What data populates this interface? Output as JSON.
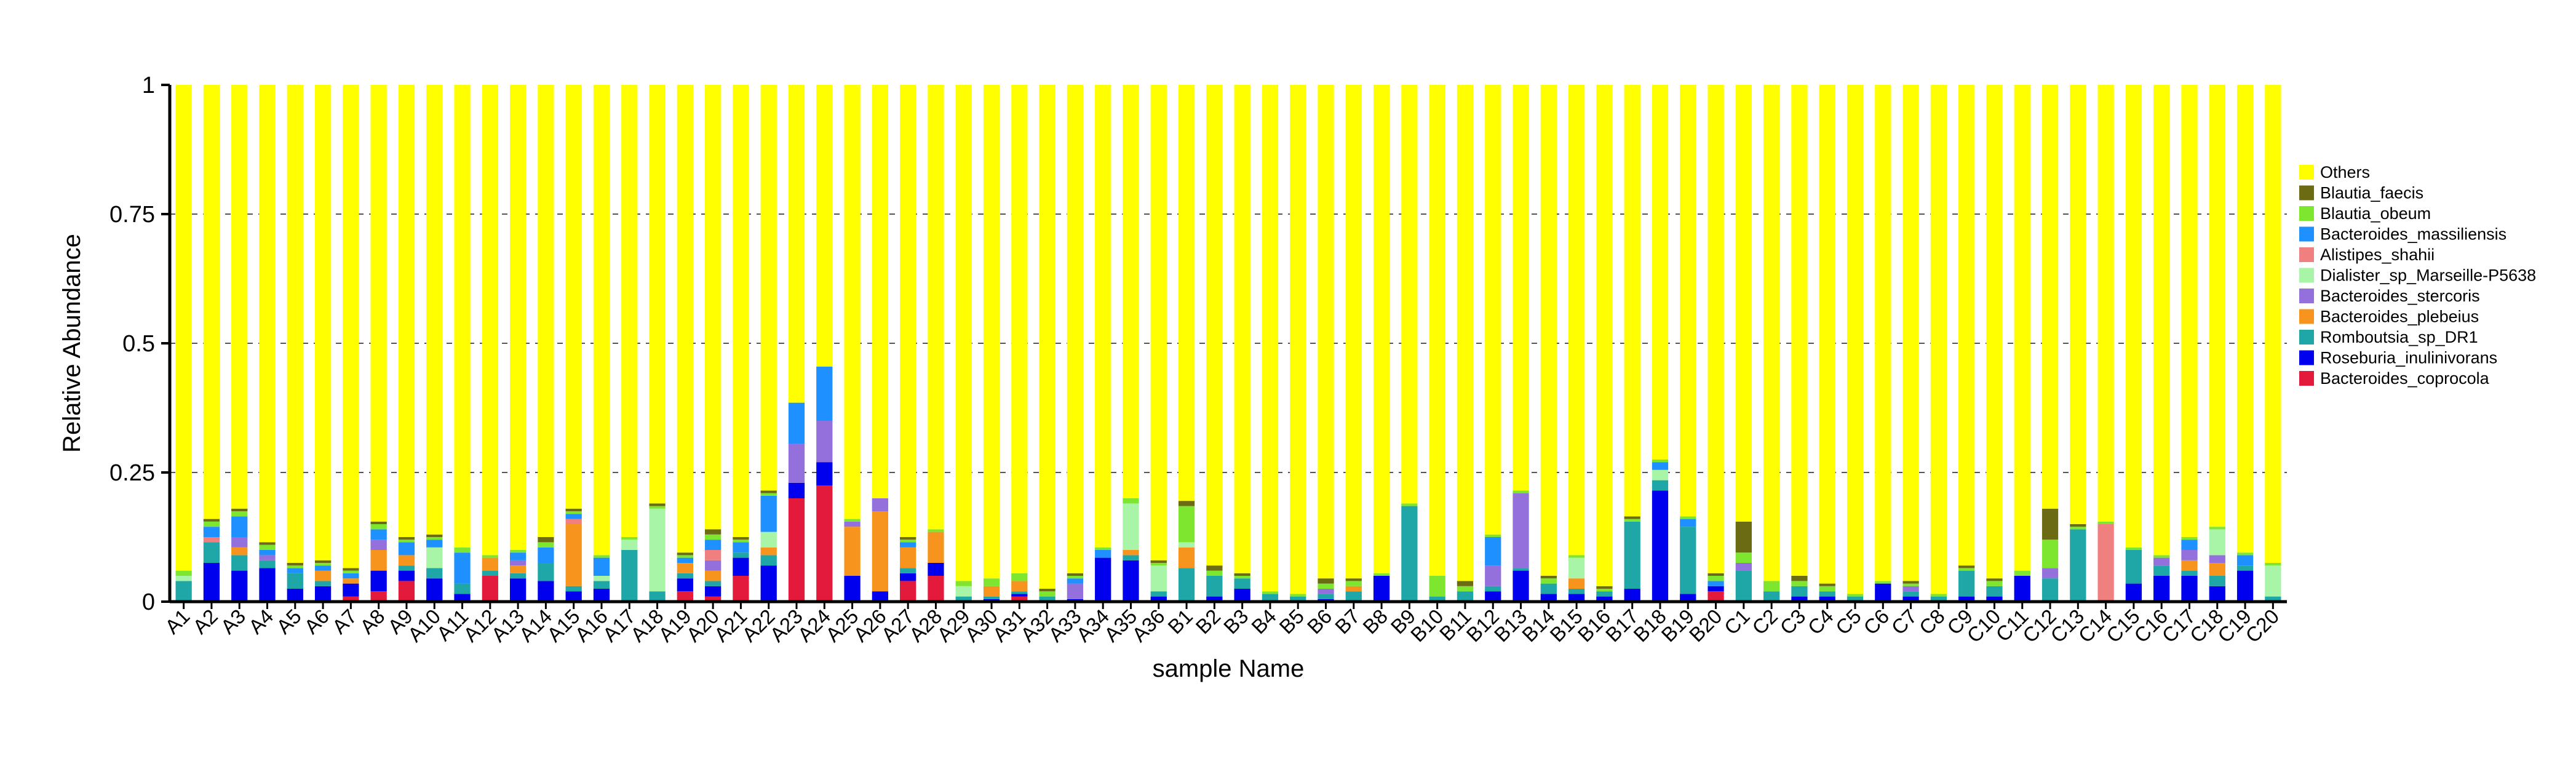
{
  "chart_data": {
    "type": "bar",
    "stacked": true,
    "xlabel": "sample Name",
    "ylabel": "Relative Abundance",
    "ylim": [
      0,
      1
    ],
    "yticks": [
      0,
      0.25,
      0.5,
      0.75,
      1
    ],
    "ytick_labels": [
      "0",
      "0.25",
      "0.5",
      "0.75",
      "1"
    ],
    "grid": "dashed horizontal at 0.25, 0.5, 0.75",
    "legend_position": "right",
    "categories": [
      "A1",
      "A2",
      "A3",
      "A4",
      "A5",
      "A6",
      "A7",
      "A8",
      "A9",
      "A10",
      "A11",
      "A12",
      "A13",
      "A14",
      "A15",
      "A16",
      "A17",
      "A18",
      "A19",
      "A20",
      "A21",
      "A22",
      "A23",
      "A24",
      "A25",
      "A26",
      "A27",
      "A28",
      "A29",
      "A30",
      "A31",
      "A32",
      "A33",
      "A34",
      "A35",
      "A36",
      "B1",
      "B2",
      "B3",
      "B4",
      "B5",
      "B6",
      "B7",
      "B8",
      "B9",
      "B10",
      "B11",
      "B12",
      "B13",
      "B14",
      "B15",
      "B16",
      "B17",
      "B18",
      "B19",
      "B20",
      "C1",
      "C2",
      "C3",
      "C4",
      "C5",
      "C6",
      "C7",
      "C8",
      "C9",
      "C10",
      "C11",
      "C12",
      "C13",
      "C14",
      "C15",
      "C16",
      "C17",
      "C18",
      "C19",
      "C20"
    ],
    "series": [
      {
        "name": "Bacteroides_coprocola",
        "color": "#e31a3c",
        "values": [
          0,
          0,
          0,
          0,
          0,
          0,
          0.01,
          0.02,
          0.04,
          0,
          0,
          0.05,
          0,
          0,
          0,
          0,
          0,
          0,
          0.02,
          0.01,
          0.05,
          0,
          0.2,
          0.225,
          0,
          0,
          0.04,
          0.05,
          0,
          0,
          0.01,
          0,
          0,
          0,
          0,
          0,
          0,
          0,
          0,
          0,
          0,
          0,
          0,
          0,
          0,
          0,
          0,
          0,
          0,
          0,
          0,
          0,
          0,
          0,
          0,
          0.02,
          0,
          0,
          0,
          0,
          0,
          0,
          0,
          0,
          0,
          0,
          0,
          0,
          0,
          0,
          0,
          0,
          0,
          0,
          0,
          0
        ]
      },
      {
        "name": "Roseburia_inulinivorans",
        "color": "#0000ee",
        "values": [
          0,
          0.075,
          0.06,
          0.065,
          0.025,
          0.03,
          0.025,
          0.04,
          0.02,
          0.045,
          0.015,
          0,
          0.045,
          0.04,
          0.02,
          0.025,
          0,
          0,
          0.025,
          0.02,
          0.035,
          0.07,
          0.03,
          0.045,
          0.05,
          0.02,
          0.015,
          0.025,
          0,
          0.005,
          0.005,
          0,
          0.005,
          0.085,
          0.08,
          0.01,
          0,
          0.01,
          0.025,
          0,
          0,
          0.005,
          0,
          0.05,
          0,
          0,
          0,
          0.02,
          0.06,
          0.015,
          0.015,
          0.01,
          0.025,
          0.215,
          0.015,
          0.01,
          0,
          0,
          0.01,
          0.01,
          0,
          0.035,
          0.01,
          0,
          0.01,
          0.01,
          0.05,
          0,
          0,
          0,
          0.035,
          0.05,
          0.05,
          0.03,
          0.06,
          0
        ]
      },
      {
        "name": "Romboutsia_sp_DR1",
        "color": "#1fa7a7",
        "values": [
          0.04,
          0.04,
          0.03,
          0.015,
          0.03,
          0.01,
          0,
          0,
          0.01,
          0.02,
          0.02,
          0.01,
          0.01,
          0.035,
          0.01,
          0.015,
          0.1,
          0.02,
          0.01,
          0.01,
          0.01,
          0.02,
          0,
          0,
          0,
          0,
          0.01,
          0,
          0.01,
          0.005,
          0.005,
          0.01,
          0,
          0,
          0.01,
          0.01,
          0.065,
          0.04,
          0.02,
          0.015,
          0.01,
          0.01,
          0.02,
          0,
          0.185,
          0.01,
          0.02,
          0.01,
          0.005,
          0.02,
          0.01,
          0.01,
          0.13,
          0.02,
          0.13,
          0,
          0.06,
          0.02,
          0.02,
          0.01,
          0.01,
          0,
          0.01,
          0.01,
          0.05,
          0.02,
          0,
          0.045,
          0.14,
          0,
          0.065,
          0.02,
          0.01,
          0.02,
          0.01,
          0.01
        ]
      },
      {
        "name": "Bacteroides_plebeius",
        "color": "#f7941d",
        "values": [
          0,
          0,
          0.015,
          0,
          0,
          0.02,
          0.01,
          0.04,
          0.02,
          0,
          0,
          0.025,
          0.015,
          0,
          0.12,
          0,
          0,
          0,
          0.02,
          0.02,
          0,
          0.015,
          0,
          0,
          0.095,
          0.155,
          0.04,
          0.06,
          0,
          0.02,
          0.02,
          0,
          0,
          0,
          0.01,
          0,
          0.04,
          0,
          0,
          0,
          0,
          0,
          0.01,
          0,
          0,
          0,
          0,
          0,
          0,
          0,
          0.02,
          0,
          0,
          0,
          0,
          0,
          0,
          0,
          0,
          0,
          0,
          0,
          0,
          0,
          0,
          0,
          0,
          0,
          0,
          0,
          0,
          0,
          0.02,
          0.025,
          0,
          0
        ]
      },
      {
        "name": "Bacteroides_stercoris",
        "color": "#9370db",
        "values": [
          0,
          0,
          0.02,
          0.01,
          0,
          0,
          0,
          0.02,
          0,
          0,
          0,
          0,
          0.01,
          0,
          0,
          0,
          0,
          0,
          0,
          0.02,
          0,
          0,
          0.075,
          0.08,
          0.01,
          0.025,
          0,
          0,
          0,
          0,
          0,
          0,
          0.03,
          0,
          0,
          0,
          0,
          0,
          0,
          0,
          0,
          0.01,
          0,
          0,
          0,
          0,
          0,
          0.04,
          0.145,
          0,
          0,
          0,
          0,
          0,
          0,
          0,
          0.015,
          0,
          0,
          0,
          0,
          0,
          0.01,
          0,
          0,
          0,
          0,
          0.02,
          0,
          0,
          0,
          0.015,
          0.02,
          0.015,
          0,
          0
        ]
      },
      {
        "name": "Dialister_sp_Marseille-P5638",
        "color": "#a8f5a8",
        "values": [
          0.01,
          0,
          0,
          0,
          0,
          0,
          0,
          0,
          0,
          0.04,
          0,
          0,
          0,
          0,
          0,
          0.01,
          0.02,
          0.16,
          0,
          0,
          0,
          0.03,
          0,
          0,
          0,
          0,
          0,
          0,
          0.02,
          0,
          0,
          0,
          0,
          0,
          0.09,
          0.05,
          0.01,
          0,
          0,
          0,
          0,
          0,
          0,
          0,
          0,
          0,
          0,
          0,
          0,
          0,
          0.04,
          0,
          0,
          0.02,
          0,
          0,
          0,
          0,
          0,
          0,
          0,
          0,
          0,
          0,
          0,
          0,
          0,
          0,
          0,
          0,
          0,
          0,
          0,
          0.05,
          0,
          0.06
        ]
      },
      {
        "name": "Alistipes_shahii",
        "color": "#f08080",
        "values": [
          0,
          0.01,
          0,
          0,
          0,
          0,
          0,
          0,
          0,
          0,
          0,
          0,
          0,
          0,
          0.01,
          0,
          0,
          0,
          0,
          0.02,
          0,
          0,
          0,
          0,
          0,
          0,
          0,
          0,
          0,
          0,
          0,
          0,
          0,
          0,
          0,
          0,
          0,
          0,
          0,
          0,
          0,
          0,
          0,
          0,
          0,
          0,
          0,
          0,
          0,
          0,
          0,
          0,
          0,
          0,
          0,
          0,
          0,
          0,
          0,
          0,
          0,
          0,
          0,
          0,
          0,
          0,
          0,
          0,
          0,
          0.15,
          0,
          0,
          0,
          0,
          0,
          0
        ]
      },
      {
        "name": "Bacteroides_massiliensis",
        "color": "#1e90ff",
        "values": [
          0,
          0.02,
          0.04,
          0.01,
          0.01,
          0.01,
          0.01,
          0.02,
          0.025,
          0.015,
          0.06,
          0,
          0.015,
          0.03,
          0.01,
          0.035,
          0,
          0,
          0.01,
          0.02,
          0.02,
          0.07,
          0.08,
          0.105,
          0,
          0,
          0.01,
          0,
          0,
          0,
          0,
          0,
          0.01,
          0.015,
          0,
          0,
          0,
          0,
          0,
          0,
          0,
          0,
          0,
          0,
          0,
          0,
          0,
          0.055,
          0,
          0,
          0,
          0,
          0,
          0.015,
          0.015,
          0.01,
          0,
          0,
          0,
          0,
          0,
          0,
          0,
          0,
          0,
          0,
          0,
          0,
          0,
          0,
          0,
          0,
          0.02,
          0,
          0.02,
          0
        ]
      },
      {
        "name": "Blautia_obeum",
        "color": "#7fe62f",
        "values": [
          0.01,
          0.01,
          0.01,
          0.01,
          0.005,
          0.005,
          0.005,
          0.01,
          0.005,
          0.005,
          0.01,
          0.005,
          0.005,
          0.01,
          0.005,
          0.005,
          0.005,
          0.005,
          0.005,
          0.01,
          0.005,
          0.005,
          0,
          0,
          0.005,
          0,
          0.005,
          0.005,
          0.01,
          0.015,
          0.015,
          0.01,
          0.005,
          0.005,
          0.01,
          0.005,
          0.07,
          0.01,
          0.005,
          0.005,
          0.005,
          0.01,
          0.01,
          0.005,
          0.005,
          0.04,
          0.01,
          0.005,
          0.005,
          0.01,
          0.005,
          0.005,
          0.005,
          0.005,
          0.005,
          0.01,
          0.02,
          0.02,
          0.01,
          0.01,
          0.005,
          0.005,
          0.005,
          0.005,
          0.005,
          0.01,
          0.01,
          0.055,
          0.005,
          0.005,
          0.005,
          0.005,
          0.005,
          0.005,
          0.005,
          0.005
        ]
      },
      {
        "name": "Blautia_faecis",
        "color": "#6b6b14",
        "values": [
          0,
          0.005,
          0.005,
          0.005,
          0.005,
          0.005,
          0.005,
          0.005,
          0.005,
          0.005,
          0,
          0,
          0,
          0.01,
          0.005,
          0,
          0,
          0.005,
          0.005,
          0.01,
          0.005,
          0.005,
          0,
          0,
          0,
          0,
          0.005,
          0,
          0,
          0,
          0,
          0.005,
          0.005,
          0,
          0,
          0.005,
          0.01,
          0.01,
          0.005,
          0,
          0,
          0.01,
          0.005,
          0,
          0,
          0,
          0.01,
          0,
          0,
          0.005,
          0,
          0.005,
          0.005,
          0,
          0,
          0.005,
          0.06,
          0,
          0.01,
          0.005,
          0,
          0,
          0.005,
          0,
          0.005,
          0.005,
          0,
          0.06,
          0.005,
          0,
          0,
          0,
          0,
          0,
          0,
          0
        ]
      },
      {
        "name": "Others",
        "color": "#ffff00",
        "values": "remainder to 1"
      }
    ],
    "legend_order": [
      "Others",
      "Blautia_faecis",
      "Blautia_obeum",
      "Bacteroides_massiliensis",
      "Alistipes_shahii",
      "Dialister_sp_Marseille-P5638",
      "Bacteroides_stercoris",
      "Bacteroides_plebeius",
      "Romboutsia_sp_DR1",
      "Roseburia_inulinivorans",
      "Bacteroides_coprocola"
    ]
  }
}
